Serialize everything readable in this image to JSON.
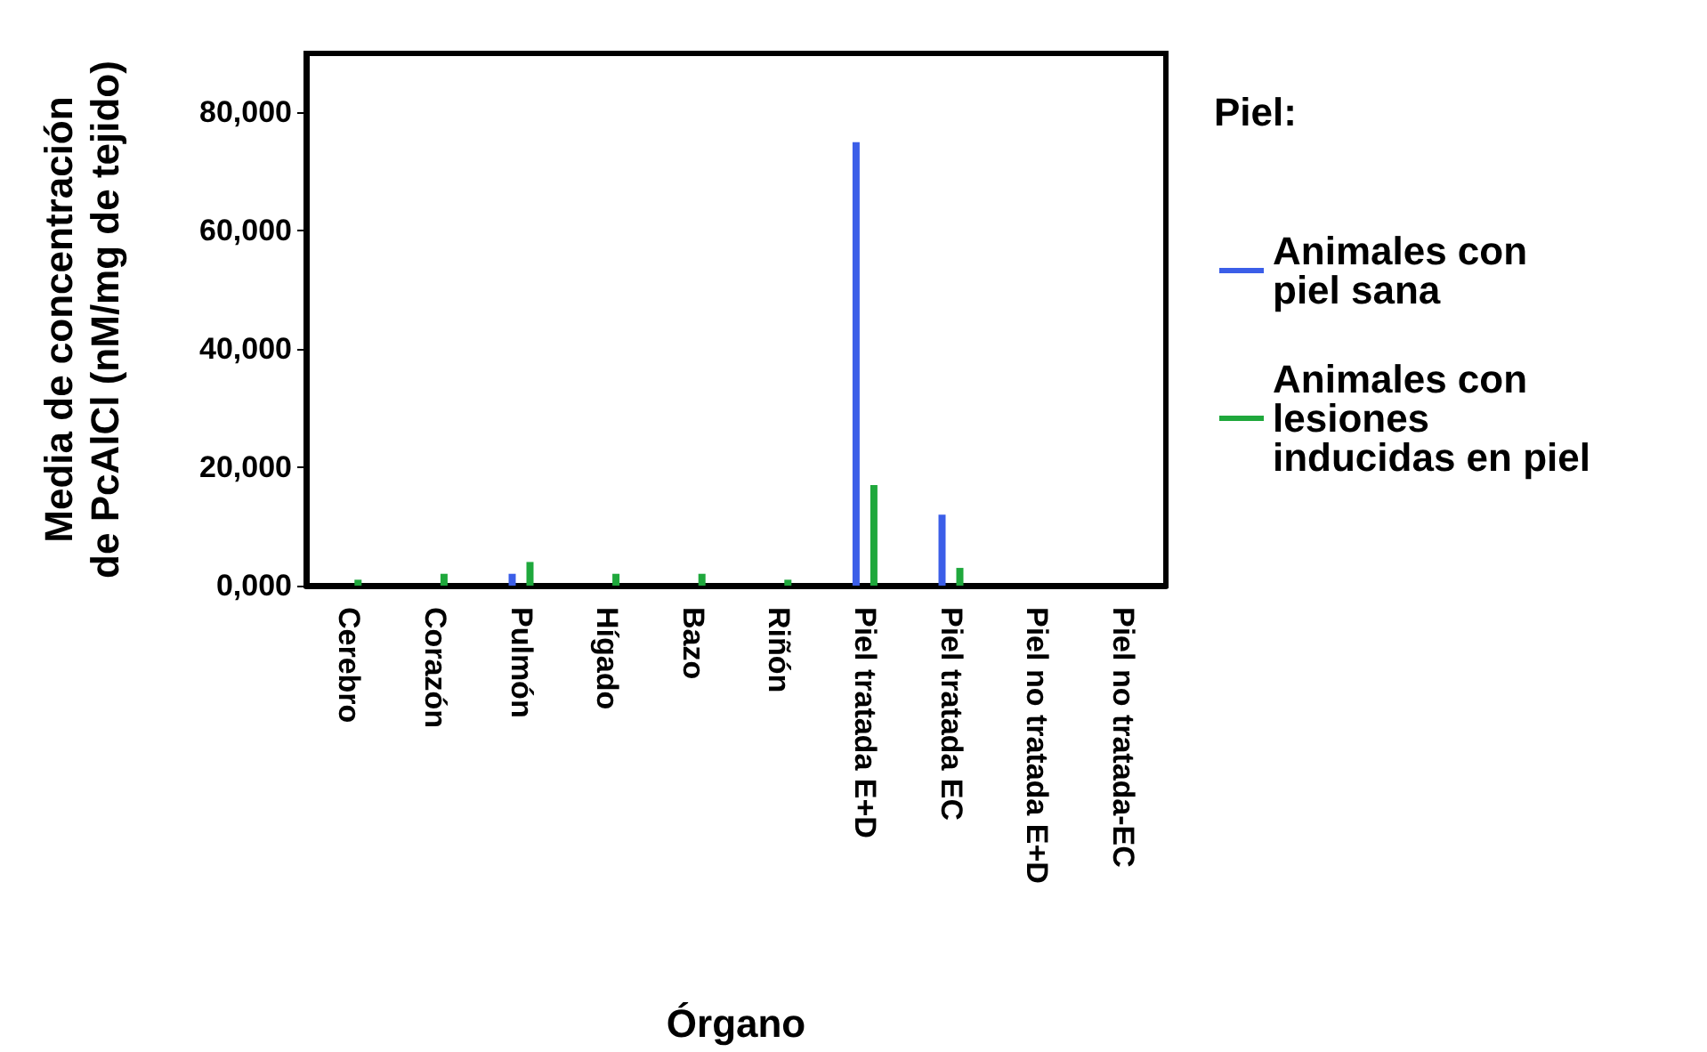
{
  "chart_data": {
    "type": "bar",
    "xlabel": "Órgano",
    "ylabel": "Media de concentración\nde PcAlCl (nM/mg de tejido)",
    "legend_title": "Piel:",
    "categories": [
      "Cerebro",
      "Corazón",
      "Pulmón",
      "Hígado",
      "Bazo",
      "Riñón",
      "Piel tratada E+D",
      "Piel tratada EC",
      "Piel no tratada E+D",
      "Piel no tratada-EC"
    ],
    "series": [
      {
        "name": "Animales con\npiel sana",
        "color": "#3b5ee8",
        "values": [
          0,
          0,
          2000,
          0,
          0,
          0,
          75000,
          12000,
          0,
          0
        ]
      },
      {
        "name": "Animales con\nlesiones\ninducidas en piel",
        "color": "#1fa83c",
        "values": [
          1000,
          2000,
          4000,
          2000,
          2000,
          1000,
          17000,
          3000,
          0,
          0
        ]
      }
    ],
    "ylim": [
      0,
      90000
    ],
    "yticks": [
      {
        "value": 0,
        "label": "0,000"
      },
      {
        "value": 20000,
        "label": "20,000"
      },
      {
        "value": 40000,
        "label": "40,000"
      },
      {
        "value": 60000,
        "label": "60,000"
      },
      {
        "value": 80000,
        "label": "80,000"
      }
    ],
    "grid": false,
    "legend": "right"
  }
}
